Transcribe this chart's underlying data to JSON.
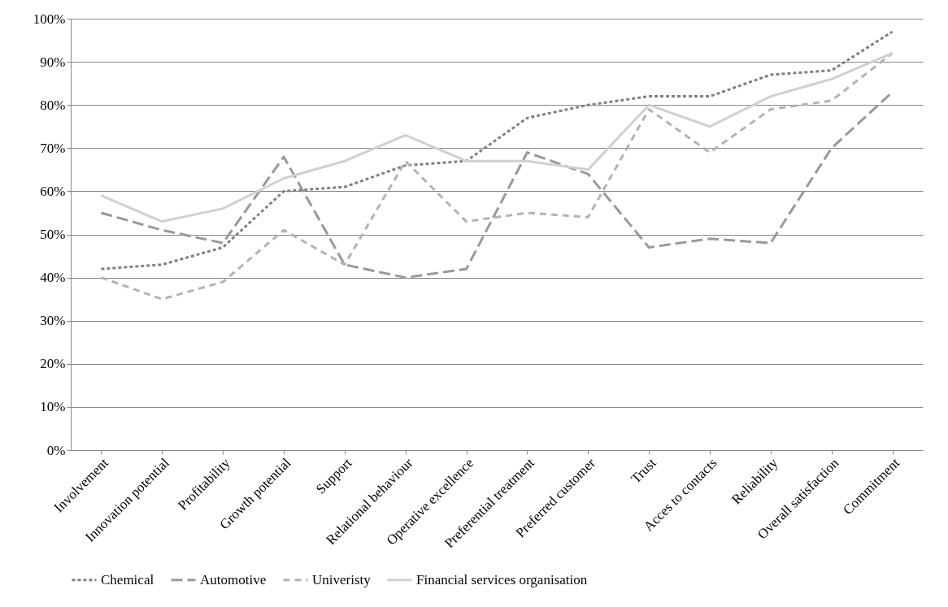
{
  "chart_data": {
    "type": "line",
    "categories": [
      "Involvement",
      "Innovation potential",
      "Profitability",
      "Growth potential",
      "Support",
      "Relational behaviour",
      "Operative excellence",
      "Preferential treatment",
      "Preferred customer",
      "Trust",
      "Acces to contacts",
      "Reliability",
      "Overall satisfaction",
      "Commitment"
    ],
    "series": [
      {
        "name": "Chemical",
        "color": "#808080",
        "line_style": "dotted",
        "values": [
          42,
          43,
          47,
          60,
          61,
          66,
          67,
          77,
          80,
          82,
          82,
          87,
          88,
          97
        ]
      },
      {
        "name": "Automotive",
        "color": "#999999",
        "line_style": "dashed",
        "values": [
          55,
          51,
          48,
          68,
          43,
          40,
          42,
          69,
          64,
          47,
          49,
          48,
          70,
          83
        ]
      },
      {
        "name": "Univeristy",
        "color": "#b3b3b3",
        "line_style": "dashed",
        "values": [
          40,
          35,
          39,
          51,
          43,
          67,
          53,
          55,
          54,
          79,
          69,
          79,
          81,
          92
        ]
      },
      {
        "name": "Financial services organisation",
        "color": "#d0d0d0",
        "line_style": "solid",
        "values": [
          59,
          53,
          56,
          63,
          67,
          73,
          67,
          67,
          65,
          80,
          75,
          82,
          86,
          92
        ]
      }
    ],
    "ylim": [
      0,
      100
    ],
    "yticks": [
      {
        "value": 0,
        "label": "0%"
      },
      {
        "value": 10,
        "label": "10%"
      },
      {
        "value": 20,
        "label": "20%"
      },
      {
        "value": 30,
        "label": "30%"
      },
      {
        "value": 40,
        "label": "40%"
      },
      {
        "value": 50,
        "label": "50%"
      },
      {
        "value": 60,
        "label": "60%"
      },
      {
        "value": 70,
        "label": "70%"
      },
      {
        "value": 80,
        "label": "80%"
      },
      {
        "value": 90,
        "label": "90%"
      },
      {
        "value": 100,
        "label": "100%"
      }
    ],
    "grid": "y",
    "legend": "bottom",
    "marker": "none"
  }
}
